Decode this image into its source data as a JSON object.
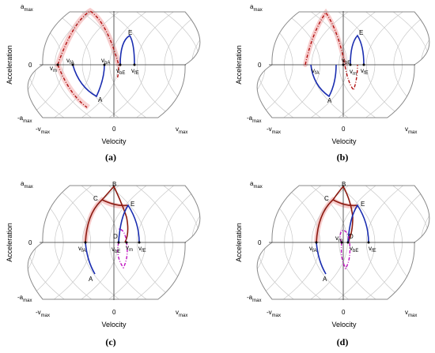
{
  "panels": [
    {
      "id": "a",
      "caption": "(a)",
      "y_axis_title": "Acceleration",
      "x_axis_title": "Velocity",
      "y_ticks": {
        "top": "a",
        "top_sub": "max",
        "zero": "0",
        "bottom": "-a",
        "bottom_sub": "max"
      },
      "x_ticks": {
        "left": "-v",
        "left_sub": "max",
        "zero": "0",
        "right": "v",
        "right_sub": "max"
      },
      "labels": [
        {
          "main": "E",
          "sub": ""
        },
        {
          "main": "A",
          "sub": ""
        },
        {
          "main": "v",
          "sub": "m"
        },
        {
          "main": "v",
          "sub": "fA"
        },
        {
          "main": "v",
          "sub": "bA"
        },
        {
          "main": "v",
          "sub": "bE"
        },
        {
          "main": "v",
          "sub": "fE"
        }
      ]
    },
    {
      "id": "b",
      "caption": "(b)",
      "y_axis_title": "Acceleration",
      "x_axis_title": "Velocity",
      "y_ticks": {
        "top": "a",
        "top_sub": "max",
        "zero": "0",
        "bottom": "-a",
        "bottom_sub": "max"
      },
      "x_ticks": {
        "left": "-v",
        "left_sub": "max",
        "zero": "0",
        "right": "v",
        "right_sub": "max"
      },
      "labels": [
        {
          "main": "E",
          "sub": ""
        },
        {
          "main": "A",
          "sub": ""
        },
        {
          "main": "v",
          "sub": "fA"
        },
        {
          "main": "v",
          "sub": "bE"
        },
        {
          "main": "v",
          "sub": "m"
        },
        {
          "main": "v",
          "sub": "fE"
        }
      ]
    },
    {
      "id": "c",
      "caption": "(c)",
      "y_axis_title": "Acceleration",
      "x_axis_title": "Velocity",
      "y_ticks": {
        "top": "a",
        "top_sub": "max",
        "zero": "0",
        "bottom": "-a",
        "bottom_sub": "max"
      },
      "x_ticks": {
        "left": "-v",
        "left_sub": "max",
        "zero": "0",
        "right": "v",
        "right_sub": "max"
      },
      "labels": [
        {
          "main": "B",
          "sub": ""
        },
        {
          "main": "C",
          "sub": ""
        },
        {
          "main": "E",
          "sub": ""
        },
        {
          "main": "D",
          "sub": ""
        },
        {
          "main": "A",
          "sub": ""
        },
        {
          "main": "v",
          "sub": "fA"
        },
        {
          "main": "v",
          "sub": "bE"
        },
        {
          "main": "v",
          "sub": "m"
        },
        {
          "main": "v",
          "sub": "fE"
        }
      ]
    },
    {
      "id": "d",
      "caption": "(d)",
      "y_axis_title": "Acceleration",
      "x_axis_title": "Velocity",
      "y_ticks": {
        "top": "a",
        "top_sub": "max",
        "zero": "0",
        "bottom": "-a",
        "bottom_sub": "max"
      },
      "x_ticks": {
        "left": "-v",
        "left_sub": "max",
        "zero": "0",
        "right": "v",
        "right_sub": "max"
      },
      "labels": [
        {
          "main": "B",
          "sub": ""
        },
        {
          "main": "C",
          "sub": ""
        },
        {
          "main": "E",
          "sub": ""
        },
        {
          "main": "D",
          "sub": ""
        },
        {
          "main": "A",
          "sub": ""
        },
        {
          "main": "v",
          "sub": "fA"
        },
        {
          "main": "v",
          "sub": "m"
        },
        {
          "main": "v",
          "sub": "bE"
        },
        {
          "main": "v",
          "sub": "fE"
        }
      ]
    }
  ],
  "colors": {
    "boundary": "#8a8a8a",
    "grid": "#c8c8c8",
    "axis": "#333333",
    "trajectory_blue": "#1a2db0",
    "trajectory_red_dashed": "#b01010",
    "trajectory_red_solid": "#8c1a10",
    "trajectory_magenta": "#c010c0",
    "highlight": "#f4b6b6"
  }
}
